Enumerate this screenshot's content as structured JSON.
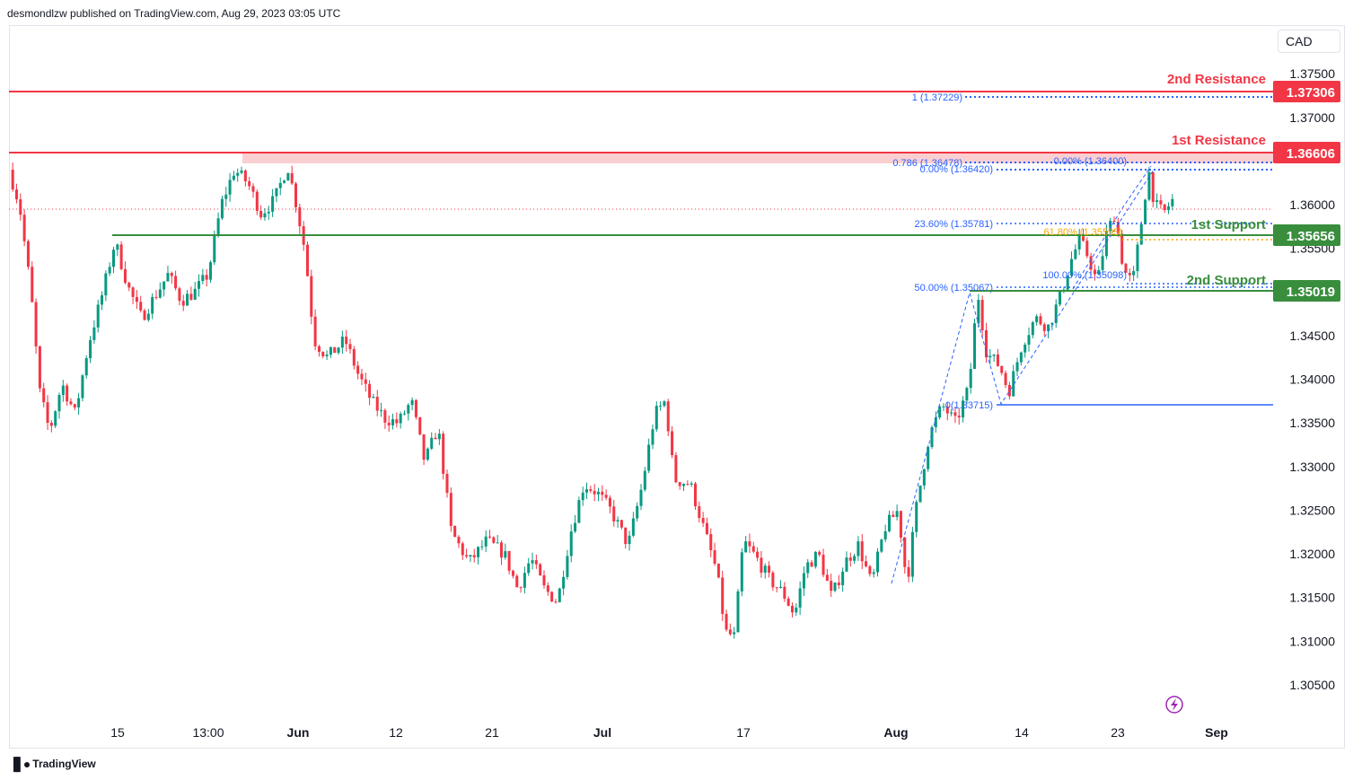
{
  "header": {
    "publisher_text": "desmondlzw published on TradingView.com, Aug 29, 2023 03:05 UTC"
  },
  "currency_button": "CAD",
  "footer": {
    "brand": "TradingView"
  },
  "chart_data": {
    "type": "candlestick",
    "symbol_currency": "CAD",
    "ylim": [
      1.303,
      1.377
    ],
    "y_ticks": [
      "1.37500",
      "1.37000",
      "1.36000",
      "1.35500",
      "1.34500",
      "1.34000",
      "1.33500",
      "1.33000",
      "1.32500",
      "1.32000",
      "1.31500",
      "1.31000",
      "1.30500"
    ],
    "x_ticks": [
      "15",
      "13:00",
      "Jun",
      "12",
      "21",
      "Jul",
      "17",
      "Aug",
      "14",
      "23",
      "Sep"
    ],
    "price_path": [
      {
        "t": 0.0,
        "p": 1.364
      },
      {
        "t": 1.2,
        "p": 1.36
      },
      {
        "t": 2.5,
        "p": 1.35
      },
      {
        "t": 3.5,
        "p": 1.3385
      },
      {
        "t": 4.6,
        "p": 1.334
      },
      {
        "t": 6.0,
        "p": 1.3395
      },
      {
        "t": 7.5,
        "p": 1.336
      },
      {
        "t": 9.0,
        "p": 1.344
      },
      {
        "t": 10.5,
        "p": 1.3495
      },
      {
        "t": 12.0,
        "p": 1.3558
      },
      {
        "t": 13.5,
        "p": 1.3505
      },
      {
        "t": 15.0,
        "p": 1.347
      },
      {
        "t": 16.5,
        "p": 1.3495
      },
      {
        "t": 18.0,
        "p": 1.352
      },
      {
        "t": 19.5,
        "p": 1.349
      },
      {
        "t": 21.0,
        "p": 1.35
      },
      {
        "t": 22.5,
        "p": 1.352
      },
      {
        "t": 24.0,
        "p": 1.36
      },
      {
        "t": 25.5,
        "p": 1.364
      },
      {
        "t": 27.0,
        "p": 1.3625
      },
      {
        "t": 28.5,
        "p": 1.359
      },
      {
        "t": 30.0,
        "p": 1.3605
      },
      {
        "t": 31.5,
        "p": 1.3645
      },
      {
        "t": 32.5,
        "p": 1.36
      },
      {
        "t": 33.5,
        "p": 1.3545
      },
      {
        "t": 34.5,
        "p": 1.3445
      },
      {
        "t": 36.0,
        "p": 1.3425
      },
      {
        "t": 38.0,
        "p": 1.3445
      },
      {
        "t": 39.5,
        "p": 1.3405
      },
      {
        "t": 41.0,
        "p": 1.3375
      },
      {
        "t": 42.5,
        "p": 1.3355
      },
      {
        "t": 44.0,
        "p": 1.335
      },
      {
        "t": 45.5,
        "p": 1.3375
      },
      {
        "t": 47.0,
        "p": 1.3305
      },
      {
        "t": 48.5,
        "p": 1.3345
      },
      {
        "t": 50.0,
        "p": 1.3225
      },
      {
        "t": 52.0,
        "p": 1.319
      },
      {
        "t": 54.0,
        "p": 1.3215
      },
      {
        "t": 56.0,
        "p": 1.32
      },
      {
        "t": 57.5,
        "p": 1.316
      },
      {
        "t": 59.0,
        "p": 1.3195
      },
      {
        "t": 60.5,
        "p": 1.316
      },
      {
        "t": 62.0,
        "p": 1.3145
      },
      {
        "t": 63.5,
        "p": 1.3225
      },
      {
        "t": 65.0,
        "p": 1.328
      },
      {
        "t": 66.5,
        "p": 1.327
      },
      {
        "t": 68.0,
        "p": 1.325
      },
      {
        "t": 70.0,
        "p": 1.321
      },
      {
        "t": 71.5,
        "p": 1.3275
      },
      {
        "t": 73.0,
        "p": 1.336
      },
      {
        "t": 74.2,
        "p": 1.3375
      },
      {
        "t": 75.2,
        "p": 1.3285
      },
      {
        "t": 77.0,
        "p": 1.328
      },
      {
        "t": 78.5,
        "p": 1.323
      },
      {
        "t": 80.0,
        "p": 1.318
      },
      {
        "t": 81.0,
        "p": 1.311
      },
      {
        "t": 82.0,
        "p": 1.3105
      },
      {
        "t": 83.0,
        "p": 1.3215
      },
      {
        "t": 84.5,
        "p": 1.3195
      },
      {
        "t": 86.0,
        "p": 1.317
      },
      {
        "t": 87.5,
        "p": 1.3155
      },
      {
        "t": 88.8,
        "p": 1.313
      },
      {
        "t": 90.0,
        "p": 1.3185
      },
      {
        "t": 91.5,
        "p": 1.32
      },
      {
        "t": 93.0,
        "p": 1.315
      },
      {
        "t": 94.5,
        "p": 1.319
      },
      {
        "t": 96.0,
        "p": 1.321
      },
      {
        "t": 97.5,
        "p": 1.3165
      },
      {
        "t": 99.0,
        "p": 1.323
      },
      {
        "t": 100.5,
        "p": 1.325
      },
      {
        "t": 101.5,
        "p": 1.3165
      },
      {
        "t": 102.5,
        "p": 1.325
      },
      {
        "t": 104.0,
        "p": 1.3335
      },
      {
        "t": 105.5,
        "p": 1.337
      },
      {
        "t": 107.0,
        "p": 1.335
      },
      {
        "t": 108.5,
        "p": 1.339
      },
      {
        "t": 109.5,
        "p": 1.35
      },
      {
        "t": 110.5,
        "p": 1.343
      },
      {
        "t": 112.0,
        "p": 1.3415
      },
      {
        "t": 113.0,
        "p": 1.3385
      },
      {
        "t": 114.5,
        "p": 1.344
      },
      {
        "t": 116.0,
        "p": 1.347
      },
      {
        "t": 117.5,
        "p": 1.346
      },
      {
        "t": 119.0,
        "p": 1.35
      },
      {
        "t": 120.0,
        "p": 1.3535
      },
      {
        "t": 121.0,
        "p": 1.356
      },
      {
        "t": 122.0,
        "p": 1.354
      },
      {
        "t": 123.0,
        "p": 1.351
      },
      {
        "t": 124.0,
        "p": 1.3565
      },
      {
        "t": 125.0,
        "p": 1.359
      },
      {
        "t": 126.0,
        "p": 1.3525
      },
      {
        "t": 127.0,
        "p": 1.351
      },
      {
        "t": 128.0,
        "p": 1.358
      },
      {
        "t": 128.8,
        "p": 1.364
      },
      {
        "t": 129.5,
        "p": 1.36
      },
      {
        "t": 130.5,
        "p": 1.359
      },
      {
        "t": 131.5,
        "p": 1.3605
      }
    ],
    "levels": {
      "resistance_2": {
        "label": "2nd Resistance",
        "value": 1.37306,
        "price_label": "1.37306",
        "color": "#f23645"
      },
      "resistance_1": {
        "label": "1st Resistance",
        "value": 1.36606,
        "price_label": "1.36606",
        "color": "#f23645"
      },
      "support_1": {
        "label": "1st Support",
        "value": 1.35656,
        "price_label": "1.35656",
        "color": "#388e3c"
      },
      "support_2": {
        "label": "2nd Support",
        "value": 1.35019,
        "price_label": "1.35019",
        "color": "#388e3c"
      }
    },
    "fib_labels": [
      {
        "text": "1 (1.37229)",
        "value": 1.37229
      },
      {
        "text": "0.786 (1.36478)",
        "value": 1.36478
      },
      {
        "text": "0.00% (1.36420)",
        "value": 1.3642
      },
      {
        "text": "0.00% (1.36400)",
        "value": 1.364
      },
      {
        "text": "23.60% (1.35781)",
        "value": 1.35781
      },
      {
        "text": "61.80% (1.35595)",
        "value": 1.35595
      },
      {
        "text": "100.00% (1.35098)",
        "value": 1.35098
      },
      {
        "text": "50.00% (1.35067)",
        "value": 1.35067
      },
      {
        "text": "0(1.33715)",
        "value": 1.33715
      }
    ],
    "colors": {
      "up": "#089981",
      "down": "#f23645",
      "resistance": "#f23645",
      "support": "#388e3c",
      "fib": "#2962ff",
      "fib_gold": "#f7a600",
      "resistance_zone": "#f9c3c7",
      "last_price": "#f23645"
    }
  }
}
